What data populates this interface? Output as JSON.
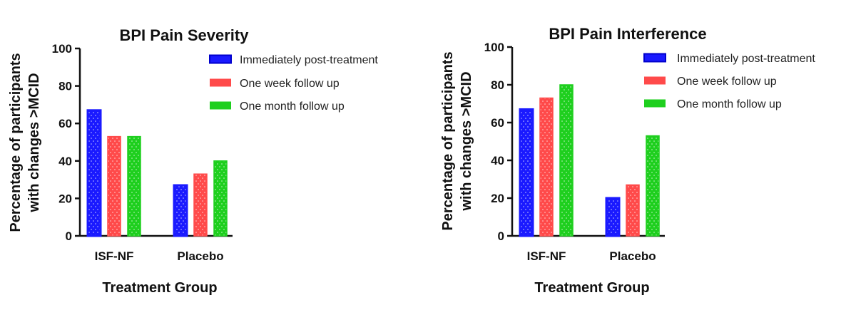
{
  "chart_data": [
    {
      "type": "bar",
      "title": "BPI  Pain Severity",
      "xlabel": "Treatment Group",
      "ylabel": [
        "Percentage of participants",
        "with changes >MCID"
      ],
      "categories": [
        "ISF-NF",
        "Placebo"
      ],
      "ylim": [
        0,
        100
      ],
      "yticks": [
        "0",
        "20",
        "40",
        "60",
        "80",
        "100"
      ],
      "legend_position": "top-right",
      "series": [
        {
          "name": "Immediately post-treatment",
          "color": "#1a1aff",
          "values": [
            67,
            27
          ]
        },
        {
          "name": "One week follow up",
          "color": "#ff4a4a",
          "values": [
            53,
            33
          ]
        },
        {
          "name": "One month follow up",
          "color": "#1ecf1e",
          "values": [
            53,
            40
          ]
        }
      ]
    },
    {
      "type": "bar",
      "title": "BPI  Pain Interference",
      "xlabel": "Treatment Group",
      "ylabel": [
        "Percentage of participants",
        "with changes >MCID"
      ],
      "categories": [
        "ISF-NF",
        "Placebo"
      ],
      "ylim": [
        0,
        100
      ],
      "yticks": [
        "0",
        "20",
        "40",
        "60",
        "80",
        "100"
      ],
      "legend_position": "top-right",
      "series": [
        {
          "name": "Immediately post-treatment",
          "color": "#1a1aff",
          "values": [
            67,
            20
          ]
        },
        {
          "name": "One week follow up",
          "color": "#ff4a4a",
          "values": [
            73,
            27
          ]
        },
        {
          "name": "One month follow up",
          "color": "#1ecf1e",
          "values": [
            80,
            53
          ]
        }
      ]
    }
  ]
}
